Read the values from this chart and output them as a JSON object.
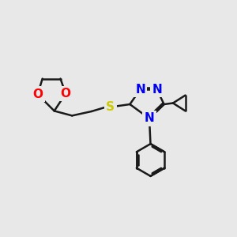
{
  "bg_color": "#e8e8e8",
  "bond_color": "#1a1a1a",
  "bond_width": 1.8,
  "atom_colors": {
    "N": "#0000ee",
    "O": "#ff0000",
    "S": "#cccc00",
    "C": "#1a1a1a"
  },
  "font_size_atom": 11
}
